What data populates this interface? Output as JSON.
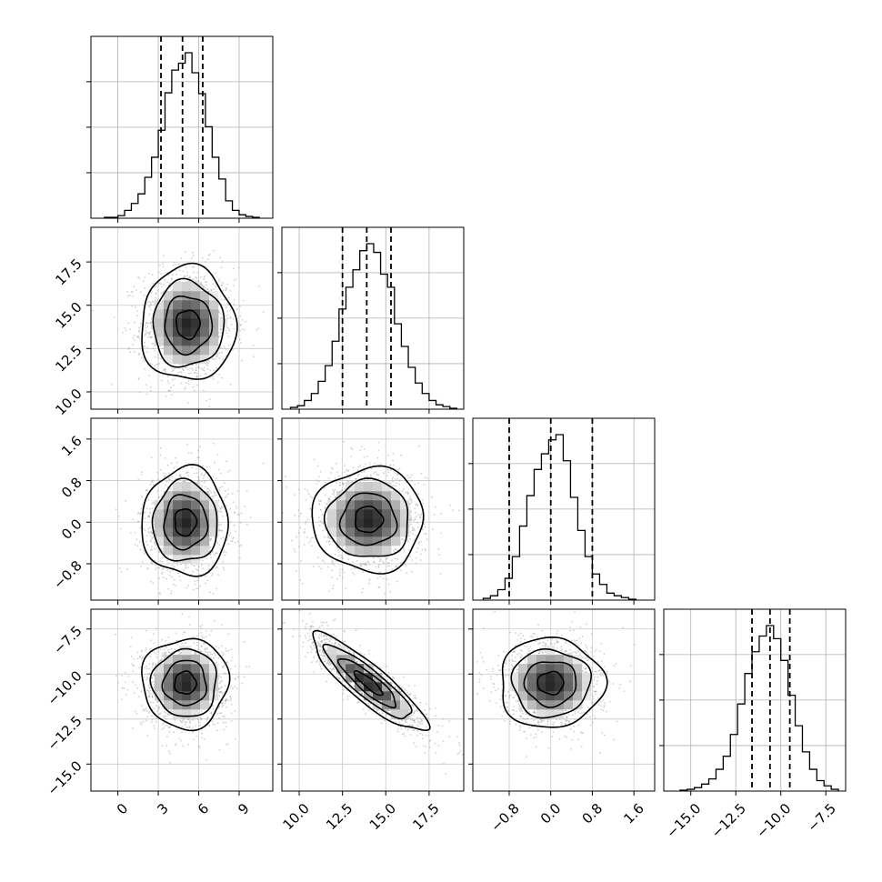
{
  "chart_data": {
    "type": "corner",
    "parameters": [
      {
        "range": [
          -2,
          11.5
        ],
        "ticks": [
          0,
          3,
          6,
          9
        ],
        "tick_labels": [
          "0",
          "3",
          "6",
          "9"
        ],
        "histogram": {
          "bin_edges": [
            -1.0,
            -0.5,
            0.0,
            0.5,
            1.0,
            1.5,
            2.0,
            2.5,
            3.0,
            3.5,
            4.0,
            4.5,
            5.0,
            5.5,
            6.0,
            6.5,
            7.0,
            7.5,
            8.0,
            8.5,
            9.0,
            9.5,
            10.0,
            10.5
          ],
          "counts": [
            1,
            1,
            3,
            9,
            17,
            28,
            47,
            70,
            101,
            144,
            170,
            178,
            190,
            167,
            143,
            105,
            70,
            45,
            20,
            9,
            4,
            2,
            1
          ],
          "quantile_lines": [
            3.2,
            4.8,
            6.3
          ]
        }
      },
      {
        "range": [
          9.0,
          19.5
        ],
        "ticks": [
          10.0,
          12.5,
          15.0,
          17.5
        ],
        "tick_labels": [
          "10.0",
          "12.5",
          "15.0",
          "17.5"
        ],
        "histogram": {
          "bin_edges": [
            9.5,
            9.9,
            10.3,
            10.7,
            11.1,
            11.5,
            11.9,
            12.3,
            12.7,
            13.1,
            13.5,
            13.9,
            14.3,
            14.7,
            15.1,
            15.5,
            15.9,
            16.3,
            16.7,
            17.1,
            17.5,
            17.9,
            18.3,
            18.7,
            19.1
          ],
          "counts": [
            2,
            4,
            10,
            18,
            32,
            50,
            78,
            115,
            140,
            160,
            182,
            190,
            180,
            155,
            140,
            98,
            72,
            48,
            30,
            18,
            10,
            5,
            3,
            1
          ],
          "quantile_lines": [
            12.5,
            13.9,
            15.3
          ]
        }
      },
      {
        "range": [
          -1.5,
          2.0
        ],
        "ticks": [
          -0.8,
          0.0,
          0.8,
          1.6
        ],
        "tick_labels": [
          "−0.8",
          "0.0",
          "0.8",
          "1.6"
        ],
        "histogram": {
          "bin_edges": [
            -1.3,
            -1.16,
            -1.02,
            -0.88,
            -0.74,
            -0.6,
            -0.46,
            -0.32,
            -0.18,
            -0.04,
            0.1,
            0.24,
            0.38,
            0.52,
            0.66,
            0.8,
            0.94,
            1.08,
            1.22,
            1.36,
            1.5,
            1.64
          ],
          "counts": [
            2,
            5,
            12,
            25,
            50,
            85,
            120,
            150,
            168,
            184,
            190,
            160,
            118,
            80,
            50,
            30,
            18,
            8,
            5,
            3,
            1
          ],
          "quantile_lines": [
            -0.8,
            0.0,
            0.8
          ]
        }
      },
      {
        "range": [
          -16.5,
          -6.4
        ],
        "ticks": [
          -15.0,
          -12.5,
          -10.0,
          -7.5
        ],
        "tick_labels": [
          "−15.0",
          "−12.5",
          "−10.0",
          "−7.5"
        ],
        "histogram": {
          "bin_edges": [
            -15.6,
            -15.2,
            -14.8,
            -14.4,
            -14.0,
            -13.6,
            -13.2,
            -12.8,
            -12.4,
            -12.0,
            -11.6,
            -11.2,
            -10.8,
            -10.4,
            -10.0,
            -9.6,
            -9.2,
            -8.8,
            -8.4,
            -8.0,
            -7.6,
            -7.2,
            -6.8
          ],
          "counts": [
            1,
            2,
            4,
            8,
            14,
            25,
            40,
            65,
            100,
            135,
            160,
            178,
            190,
            175,
            150,
            110,
            75,
            45,
            25,
            12,
            6,
            2
          ],
          "quantile_lines": [
            -11.6,
            -10.6,
            -9.5
          ]
        }
      }
    ],
    "pairs": [
      {
        "row": 1,
        "col": 0,
        "mean": [
          5.2,
          13.9
        ],
        "std": [
          1.75,
          1.65
        ],
        "corr": 0.0
      },
      {
        "row": 2,
        "col": 0,
        "mean": [
          5.0,
          0.0
        ],
        "std": [
          1.6,
          0.52
        ],
        "corr": 0.0
      },
      {
        "row": 2,
        "col": 1,
        "mean": [
          14.0,
          0.05
        ],
        "std": [
          1.6,
          0.5
        ],
        "corr": 0.0
      },
      {
        "row": 3,
        "col": 0,
        "mean": [
          5.0,
          -10.5
        ],
        "std": [
          1.6,
          1.25
        ],
        "corr": 0.0
      },
      {
        "row": 3,
        "col": 1,
        "mean": [
          14.0,
          -10.5
        ],
        "std": [
          1.65,
          1.35
        ],
        "corr": -0.88
      },
      {
        "row": 3,
        "col": 2,
        "mean": [
          0.0,
          -10.5
        ],
        "std": [
          0.5,
          1.25
        ],
        "corr": 0.0
      }
    ],
    "contour_levels_sigma": [
      0.5,
      1.0,
      1.5,
      2.0
    ],
    "grid": true
  }
}
